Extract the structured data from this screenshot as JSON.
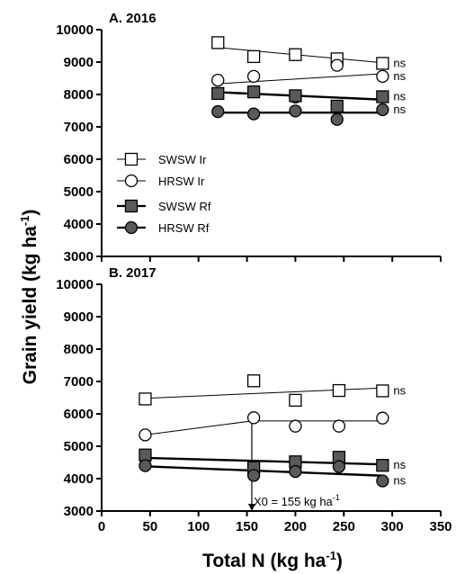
{
  "chart_data": {
    "type": "scatter",
    "xlabel": {
      "main": "Total N (kg ha",
      "sup": "-1",
      "end": ")"
    },
    "ylabel": {
      "main": "Grain yield (kg ha",
      "sup": "-1",
      "end": ")"
    },
    "xlim": [
      0,
      350
    ],
    "xticks": [
      "0",
      "50",
      "100",
      "150",
      "200",
      "250",
      "300",
      "350"
    ],
    "ylim": [
      3000,
      10000
    ],
    "yticks": [
      "3000",
      "4000",
      "5000",
      "6000",
      "7000",
      "8000",
      "9000",
      "10000"
    ],
    "legend": {
      "position": "left",
      "entries": [
        {
          "label": "SWSW Ir",
          "marker": "square",
          "fill": "#ffffff"
        },
        {
          "label": "HRSW Ir",
          "marker": "circle",
          "fill": "#ffffff"
        },
        {
          "label": "SWSW Rf",
          "marker": "square",
          "fill": "#595959"
        },
        {
          "label": "HRSW Rf",
          "marker": "circle",
          "fill": "#595959"
        }
      ]
    },
    "colors": {
      "dark_fill": "#595959",
      "open_fill": "#ffffff",
      "stroke": "#000000"
    },
    "panels": [
      {
        "title": "A. 2016",
        "series": [
          {
            "name": "SWSW Ir",
            "marker": "square",
            "fill": "#ffffff",
            "x": [
              120,
              157,
              200,
              243,
              290
            ],
            "y": [
              9600,
              9170,
              9230,
              9100,
              8960
            ],
            "fit": {
              "kind": "linear",
              "x": [
                120,
                290
              ],
              "y": [
                9450,
                8980
              ],
              "thick": false
            },
            "note": "ns"
          },
          {
            "name": "HRSW Ir",
            "marker": "circle",
            "fill": "#ffffff",
            "x": [
              120,
              157,
              200,
              243,
              290
            ],
            "y": [
              8440,
              8560,
              7920,
              8900,
              8560
            ],
            "fit": {
              "kind": "linear",
              "x": [
                120,
                290
              ],
              "y": [
                8330,
                8640
              ],
              "thick": false
            },
            "note": "ns"
          },
          {
            "name": "SWSW Rf",
            "marker": "square",
            "fill": "#595959",
            "x": [
              120,
              157,
              200,
              243,
              290
            ],
            "y": [
              8030,
              8080,
              7960,
              7640,
              7930
            ],
            "fit": {
              "kind": "linear",
              "x": [
                120,
                290
              ],
              "y": [
                8070,
                7840
              ],
              "thick": true
            },
            "note": "ns"
          },
          {
            "name": "HRSW Rf",
            "marker": "circle",
            "fill": "#595959",
            "x": [
              120,
              157,
              200,
              243,
              290
            ],
            "y": [
              7470,
              7400,
              7490,
              7230,
              7530
            ],
            "fit": {
              "kind": "linear",
              "x": [
                120,
                290
              ],
              "y": [
                7440,
                7440
              ],
              "thick": true
            },
            "note": "ns"
          }
        ]
      },
      {
        "title": "B. 2017",
        "series": [
          {
            "name": "SWSW Ir",
            "marker": "square",
            "fill": "#ffffff",
            "x": [
              45,
              157,
              200,
              245,
              290
            ],
            "y": [
              6460,
              7020,
              6420,
              6720,
              6710
            ],
            "fit": {
              "kind": "linear",
              "x": [
                45,
                290
              ],
              "y": [
                6480,
                6800
              ],
              "thick": false
            },
            "note": "ns"
          },
          {
            "name": "HRSW Ir",
            "marker": "circle",
            "fill": "#ffffff",
            "x": [
              45,
              157,
              200,
              245,
              290
            ],
            "y": [
              5350,
              5880,
              5620,
              5620,
              5870
            ],
            "fit": {
              "kind": "linear-plateau",
              "x": [
                45,
                155,
                290
              ],
              "y": [
                5350,
                5780,
                5780
              ],
              "thick": false
            },
            "note": ""
          },
          {
            "name": "SWSW Rf",
            "marker": "square",
            "fill": "#595959",
            "x": [
              45,
              157,
              200,
              245,
              290
            ],
            "y": [
              4730,
              4340,
              4520,
              4660,
              4410
            ],
            "fit": {
              "kind": "linear",
              "x": [
                45,
                290
              ],
              "y": [
                4640,
                4440
              ],
              "thick": true
            },
            "note": "ns"
          },
          {
            "name": "HRSW Rf",
            "marker": "circle",
            "fill": "#595959",
            "x": [
              45,
              157,
              200,
              245,
              290
            ],
            "y": [
              4400,
              4100,
              4220,
              4370,
              3930
            ],
            "fit": {
              "kind": "linear",
              "x": [
                45,
                290
              ],
              "y": [
                4380,
                4090
              ],
              "thick": true
            },
            "note": "ns"
          }
        ],
        "annotation": {
          "label_main": "X0 = 155 kg ha",
          "label_sup": "-1",
          "x": 155,
          "from_y": 5780,
          "to_y": 3000
        }
      }
    ]
  }
}
